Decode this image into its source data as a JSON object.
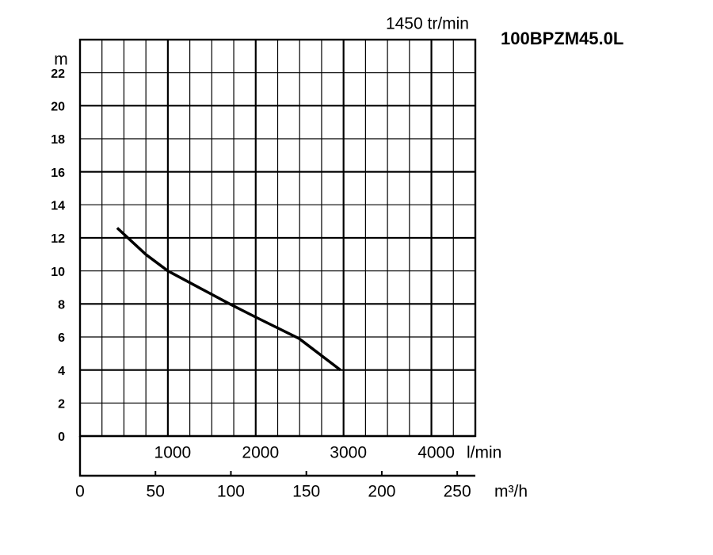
{
  "chart_data": {
    "type": "line",
    "title": "100BPZM45.0L",
    "subtitle": "1450 tr/min",
    "y_label": "m",
    "x_label": "l/min",
    "x2_label": "m³/h",
    "x": [
      423,
      748,
      1000,
      1703,
      2000,
      2495,
      2964
    ],
    "series": [
      {
        "values": [
          12.6,
          11.0,
          10.0,
          8.0,
          7.2,
          5.9,
          4.0
        ],
        "color": "#000000"
      }
    ],
    "xlim": [
      0,
      4500
    ],
    "xticks": [
      1000,
      2000,
      3000,
      4000
    ],
    "x2lim": [
      0,
      262
    ],
    "x2ticks": [
      0,
      50,
      100,
      150,
      200,
      250
    ],
    "ylim": [
      0,
      24
    ],
    "yticks": [
      0,
      2,
      4,
      6,
      8,
      10,
      12,
      14,
      16,
      18,
      20,
      22
    ],
    "grid": true
  }
}
